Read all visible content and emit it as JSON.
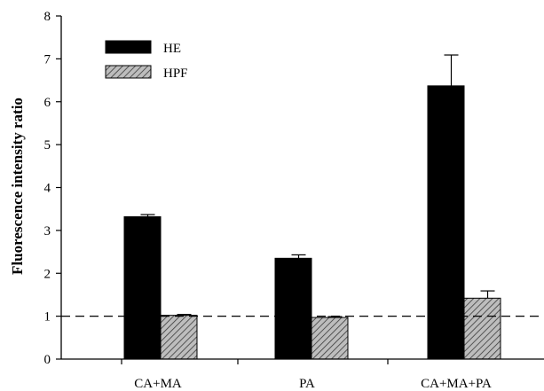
{
  "chart_data": {
    "type": "bar",
    "title": "",
    "xlabel": "",
    "ylabel": "Fluorescence intensity ratio",
    "ylim": [
      0,
      8
    ],
    "yticks": [
      "0",
      "1",
      "2",
      "3",
      "4",
      "5",
      "6",
      "7",
      "8"
    ],
    "categories": [
      "CA+MA",
      "PA",
      "CA+MA+PA"
    ],
    "series": [
      {
        "name": "HE",
        "values": [
          3.32,
          2.35,
          6.37
        ],
        "errors": [
          0.05,
          0.08,
          0.72
        ],
        "color": "#000000",
        "pattern": "solid"
      },
      {
        "name": "HPF",
        "values": [
          1.02,
          0.97,
          1.42
        ],
        "errors": [
          0.02,
          0.02,
          0.17
        ],
        "color": "#aaaaaa",
        "pattern": "hatch"
      }
    ],
    "reference_line": {
      "y": 1,
      "style": "dashed"
    },
    "legend": {
      "placement": "top-left"
    },
    "grid": false
  }
}
